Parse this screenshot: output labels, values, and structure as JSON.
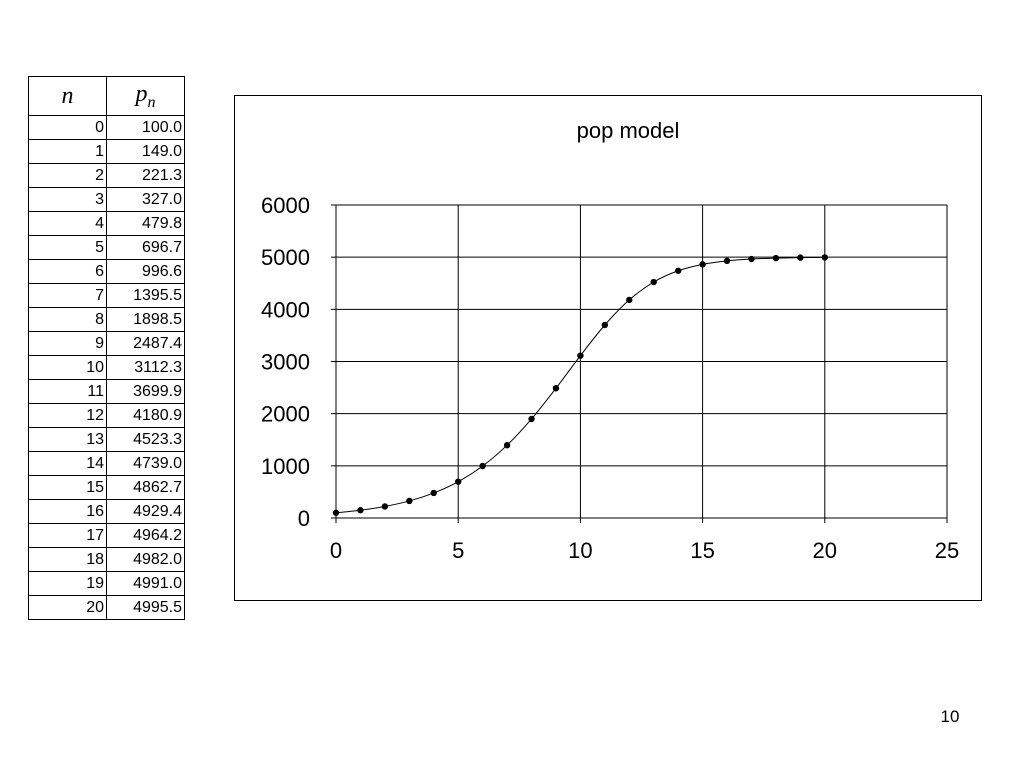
{
  "table": {
    "header_n": "n",
    "header_p": "p",
    "header_p_sub": "n",
    "rows": [
      {
        "n": "0",
        "p": "100.0"
      },
      {
        "n": "1",
        "p": "149.0"
      },
      {
        "n": "2",
        "p": "221.3"
      },
      {
        "n": "3",
        "p": "327.0"
      },
      {
        "n": "4",
        "p": "479.8"
      },
      {
        "n": "5",
        "p": "696.7"
      },
      {
        "n": "6",
        "p": "996.6"
      },
      {
        "n": "7",
        "p": "1395.5"
      },
      {
        "n": "8",
        "p": "1898.5"
      },
      {
        "n": "9",
        "p": "2487.4"
      },
      {
        "n": "10",
        "p": "3112.3"
      },
      {
        "n": "11",
        "p": "3699.9"
      },
      {
        "n": "12",
        "p": "4180.9"
      },
      {
        "n": "13",
        "p": "4523.3"
      },
      {
        "n": "14",
        "p": "4739.0"
      },
      {
        "n": "15",
        "p": "4862.7"
      },
      {
        "n": "16",
        "p": "4929.4"
      },
      {
        "n": "17",
        "p": "4964.2"
      },
      {
        "n": "18",
        "p": "4982.0"
      },
      {
        "n": "19",
        "p": "4991.0"
      },
      {
        "n": "20",
        "p": "4995.5"
      }
    ]
  },
  "chart_data": {
    "type": "scatter",
    "title": "pop model",
    "xlabel": "",
    "ylabel": "",
    "xlim": [
      0,
      25
    ],
    "ylim": [
      0,
      6000
    ],
    "xticks": [
      0,
      5,
      10,
      15,
      20,
      25
    ],
    "yticks": [
      0,
      1000,
      2000,
      3000,
      4000,
      5000,
      6000
    ],
    "grid": true,
    "legend": "none",
    "line_smooth": true,
    "series": [
      {
        "x": [
          0,
          1,
          2,
          3,
          4,
          5,
          6,
          7,
          8,
          9,
          10,
          11,
          12,
          13,
          14,
          15,
          16,
          17,
          18,
          19,
          20
        ],
        "y": [
          100.0,
          149.0,
          221.3,
          327.0,
          479.8,
          696.7,
          996.6,
          1395.5,
          1898.5,
          2487.4,
          3112.3,
          3699.9,
          4180.9,
          4523.3,
          4739.0,
          4862.7,
          4929.4,
          4964.2,
          4982.0,
          4991.0,
          4995.5
        ],
        "color": "#000000"
      }
    ]
  },
  "page_number": "10"
}
